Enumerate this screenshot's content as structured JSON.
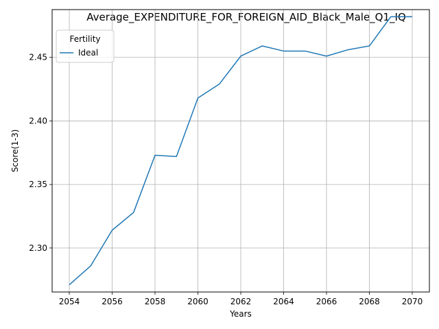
{
  "chart_data": {
    "type": "line",
    "title": "Average_EXPENDITURE_FOR_FOREIGN_AID_Black_Male_Q1_IQ",
    "xlabel": "Years",
    "ylabel": "Score(1-3)",
    "x": [
      2054,
      2055,
      2056,
      2057,
      2058,
      2059,
      2060,
      2061,
      2062,
      2063,
      2064,
      2065,
      2066,
      2067,
      2068,
      2069,
      2070
    ],
    "series": [
      {
        "name": "Ideal",
        "color": "#1f77b4",
        "values": [
          2.271,
          2.286,
          2.314,
          2.328,
          2.373,
          2.372,
          2.418,
          2.429,
          2.451,
          2.459,
          2.455,
          2.455,
          2.451,
          2.456,
          2.459,
          2.482,
          2.482
        ]
      }
    ],
    "xlim": [
      2053.2,
      2070.8
    ],
    "ylim": [
      2.2654,
      2.4876
    ],
    "xticks": [
      "2054",
      "2056",
      "2058",
      "2060",
      "2062",
      "2064",
      "2066",
      "2068",
      "2070"
    ],
    "yticks": [
      "2.30",
      "2.35",
      "2.40",
      "2.45"
    ],
    "grid": true,
    "legend": {
      "title": "Fertility",
      "placement": "top-left"
    }
  }
}
